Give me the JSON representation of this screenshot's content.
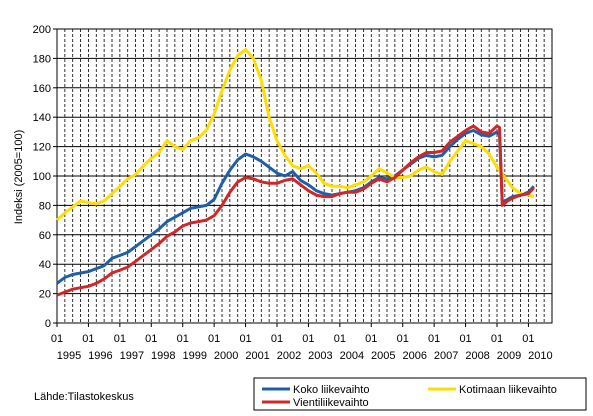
{
  "chart_data": {
    "type": "line",
    "ylabel": "Indeksi (2005=100)",
    "ylim": [
      0,
      200
    ],
    "yticks": [
      0,
      20,
      40,
      60,
      80,
      100,
      120,
      140,
      160,
      180,
      200
    ],
    "xlim": [
      1995.0,
      2010.75
    ],
    "xticks": [
      {
        "x": 1995,
        "top": "01",
        "bottom": "1995"
      },
      {
        "x": 1996,
        "top": "01",
        "bottom": "1996"
      },
      {
        "x": 1997,
        "top": "01",
        "bottom": "1997"
      },
      {
        "x": 1998,
        "top": "01",
        "bottom": "1998"
      },
      {
        "x": 1999,
        "top": "01",
        "bottom": "1999"
      },
      {
        "x": 2000,
        "top": "01",
        "bottom": "2000"
      },
      {
        "x": 2001,
        "top": "01",
        "bottom": "2001"
      },
      {
        "x": 2002,
        "top": "01",
        "bottom": "2002"
      },
      {
        "x": 2003,
        "top": "01",
        "bottom": "2003"
      },
      {
        "x": 2004,
        "top": "01",
        "bottom": "2004"
      },
      {
        "x": 2005,
        "top": "01",
        "bottom": "2005"
      },
      {
        "x": 2006,
        "top": "01",
        "bottom": "2006"
      },
      {
        "x": 2007,
        "top": "01",
        "bottom": "2007"
      },
      {
        "x": 2008,
        "top": "01",
        "bottom": "2008"
      },
      {
        "x": 2009,
        "top": "01",
        "bottom": "2009"
      },
      {
        "x": 2010,
        "top": "01",
        "bottom": "2010"
      }
    ],
    "grid": "vertical-dashed-and-horizontal",
    "legend_position": "bottom-right",
    "series": [
      {
        "name": "Koko liikevaihto",
        "color": "#1f5fa8",
        "points": [
          [
            1995.0,
            27
          ],
          [
            1995.25,
            31
          ],
          [
            1995.5,
            33
          ],
          [
            1995.75,
            34
          ],
          [
            1996.0,
            35
          ],
          [
            1996.25,
            37
          ],
          [
            1996.5,
            39
          ],
          [
            1996.75,
            44
          ],
          [
            1997.0,
            46
          ],
          [
            1997.25,
            48
          ],
          [
            1997.5,
            52
          ],
          [
            1997.75,
            56
          ],
          [
            1998.0,
            60
          ],
          [
            1998.25,
            64
          ],
          [
            1998.5,
            69
          ],
          [
            1998.75,
            72
          ],
          [
            1999.0,
            75
          ],
          [
            1999.25,
            78
          ],
          [
            1999.5,
            79
          ],
          [
            1999.75,
            80
          ],
          [
            2000.0,
            84
          ],
          [
            2000.25,
            95
          ],
          [
            2000.5,
            104
          ],
          [
            2000.75,
            111
          ],
          [
            2001.0,
            115
          ],
          [
            2001.25,
            113
          ],
          [
            2001.5,
            110
          ],
          [
            2001.75,
            106
          ],
          [
            2002.0,
            102
          ],
          [
            2002.25,
            100
          ],
          [
            2002.5,
            103
          ],
          [
            2002.75,
            97
          ],
          [
            2003.0,
            94
          ],
          [
            2003.25,
            90
          ],
          [
            2003.5,
            88
          ],
          [
            2003.75,
            87
          ],
          [
            2004.0,
            88
          ],
          [
            2004.25,
            89
          ],
          [
            2004.5,
            90
          ],
          [
            2004.75,
            92
          ],
          [
            2005.0,
            96
          ],
          [
            2005.25,
            99
          ],
          [
            2005.5,
            98
          ],
          [
            2005.75,
            100
          ],
          [
            2006.0,
            104
          ],
          [
            2006.25,
            108
          ],
          [
            2006.5,
            112
          ],
          [
            2006.75,
            114
          ],
          [
            2007.0,
            113
          ],
          [
            2007.25,
            114
          ],
          [
            2007.5,
            120
          ],
          [
            2007.75,
            125
          ],
          [
            2008.0,
            129
          ],
          [
            2008.25,
            131
          ],
          [
            2008.5,
            128
          ],
          [
            2008.75,
            127
          ],
          [
            2009.0,
            130
          ],
          [
            2009.08,
            128
          ],
          [
            2009.17,
            82
          ],
          [
            2009.33,
            84
          ],
          [
            2009.5,
            86
          ],
          [
            2009.75,
            87
          ],
          [
            2010.0,
            89
          ],
          [
            2010.17,
            93
          ]
        ]
      },
      {
        "name": "Kotimaan liikevaihto",
        "color": "#ffdd00",
        "points": [
          [
            1995.0,
            70
          ],
          [
            1995.25,
            75
          ],
          [
            1995.5,
            79
          ],
          [
            1995.75,
            83
          ],
          [
            1996.0,
            82
          ],
          [
            1996.25,
            81
          ],
          [
            1996.5,
            83
          ],
          [
            1996.75,
            88
          ],
          [
            1997.0,
            93
          ],
          [
            1997.25,
            98
          ],
          [
            1997.5,
            101
          ],
          [
            1997.75,
            107
          ],
          [
            1998.0,
            112
          ],
          [
            1998.25,
            116
          ],
          [
            1998.5,
            124
          ],
          [
            1998.75,
            120
          ],
          [
            1999.0,
            118
          ],
          [
            1999.25,
            124
          ],
          [
            1999.5,
            126
          ],
          [
            1999.75,
            131
          ],
          [
            2000.0,
            142
          ],
          [
            2000.25,
            158
          ],
          [
            2000.5,
            172
          ],
          [
            2000.75,
            182
          ],
          [
            2001.0,
            186
          ],
          [
            2001.25,
            180
          ],
          [
            2001.5,
            165
          ],
          [
            2001.75,
            140
          ],
          [
            2002.0,
            124
          ],
          [
            2002.25,
            114
          ],
          [
            2002.5,
            107
          ],
          [
            2002.75,
            105
          ],
          [
            2003.0,
            107
          ],
          [
            2003.25,
            102
          ],
          [
            2003.5,
            95
          ],
          [
            2003.75,
            93
          ],
          [
            2004.0,
            93
          ],
          [
            2004.25,
            92
          ],
          [
            2004.5,
            94
          ],
          [
            2004.75,
            96
          ],
          [
            2005.0,
            100
          ],
          [
            2005.25,
            105
          ],
          [
            2005.5,
            102
          ],
          [
            2005.75,
            99
          ],
          [
            2006.0,
            99
          ],
          [
            2006.25,
            100
          ],
          [
            2006.5,
            104
          ],
          [
            2006.75,
            106
          ],
          [
            2007.0,
            103
          ],
          [
            2007.25,
            101
          ],
          [
            2007.5,
            110
          ],
          [
            2007.75,
            117
          ],
          [
            2008.0,
            124
          ],
          [
            2008.25,
            122
          ],
          [
            2008.5,
            120
          ],
          [
            2008.75,
            115
          ],
          [
            2009.0,
            106
          ],
          [
            2009.25,
            99
          ],
          [
            2009.5,
            92
          ],
          [
            2009.75,
            88
          ],
          [
            2010.0,
            87
          ],
          [
            2010.17,
            86
          ]
        ]
      },
      {
        "name": "Vientiliikevaihto",
        "color": "#d02828",
        "points": [
          [
            1995.0,
            19
          ],
          [
            1995.25,
            21
          ],
          [
            1995.5,
            23
          ],
          [
            1995.75,
            24
          ],
          [
            1996.0,
            25
          ],
          [
            1996.25,
            27
          ],
          [
            1996.5,
            30
          ],
          [
            1996.75,
            34
          ],
          [
            1997.0,
            36
          ],
          [
            1997.25,
            38
          ],
          [
            1997.5,
            42
          ],
          [
            1997.75,
            46
          ],
          [
            1998.0,
            50
          ],
          [
            1998.25,
            54
          ],
          [
            1998.5,
            59
          ],
          [
            1998.75,
            62
          ],
          [
            1999.0,
            66
          ],
          [
            1999.25,
            68
          ],
          [
            1999.5,
            69
          ],
          [
            1999.75,
            70
          ],
          [
            2000.0,
            73
          ],
          [
            2000.25,
            80
          ],
          [
            2000.5,
            89
          ],
          [
            2000.75,
            96
          ],
          [
            2001.0,
            99
          ],
          [
            2001.25,
            98
          ],
          [
            2001.5,
            96
          ],
          [
            2001.75,
            95
          ],
          [
            2002.0,
            95
          ],
          [
            2002.25,
            97
          ],
          [
            2002.5,
            98
          ],
          [
            2002.75,
            94
          ],
          [
            2003.0,
            90
          ],
          [
            2003.25,
            87
          ],
          [
            2003.5,
            86
          ],
          [
            2003.75,
            86
          ],
          [
            2004.0,
            88
          ],
          [
            2004.25,
            89
          ],
          [
            2004.5,
            89
          ],
          [
            2004.75,
            91
          ],
          [
            2005.0,
            95
          ],
          [
            2005.25,
            98
          ],
          [
            2005.5,
            96
          ],
          [
            2005.75,
            99
          ],
          [
            2006.0,
            104
          ],
          [
            2006.25,
            109
          ],
          [
            2006.5,
            113
          ],
          [
            2006.75,
            116
          ],
          [
            2007.0,
            116
          ],
          [
            2007.25,
            117
          ],
          [
            2007.5,
            123
          ],
          [
            2007.75,
            127
          ],
          [
            2008.0,
            131
          ],
          [
            2008.25,
            134
          ],
          [
            2008.5,
            130
          ],
          [
            2008.75,
            129
          ],
          [
            2009.0,
            134
          ],
          [
            2009.08,
            133
          ],
          [
            2009.17,
            80
          ],
          [
            2009.33,
            83
          ],
          [
            2009.5,
            85
          ],
          [
            2009.75,
            87
          ],
          [
            2010.0,
            88
          ],
          [
            2010.17,
            92
          ]
        ]
      }
    ]
  },
  "source": "Lähde:Tilastokeskus"
}
